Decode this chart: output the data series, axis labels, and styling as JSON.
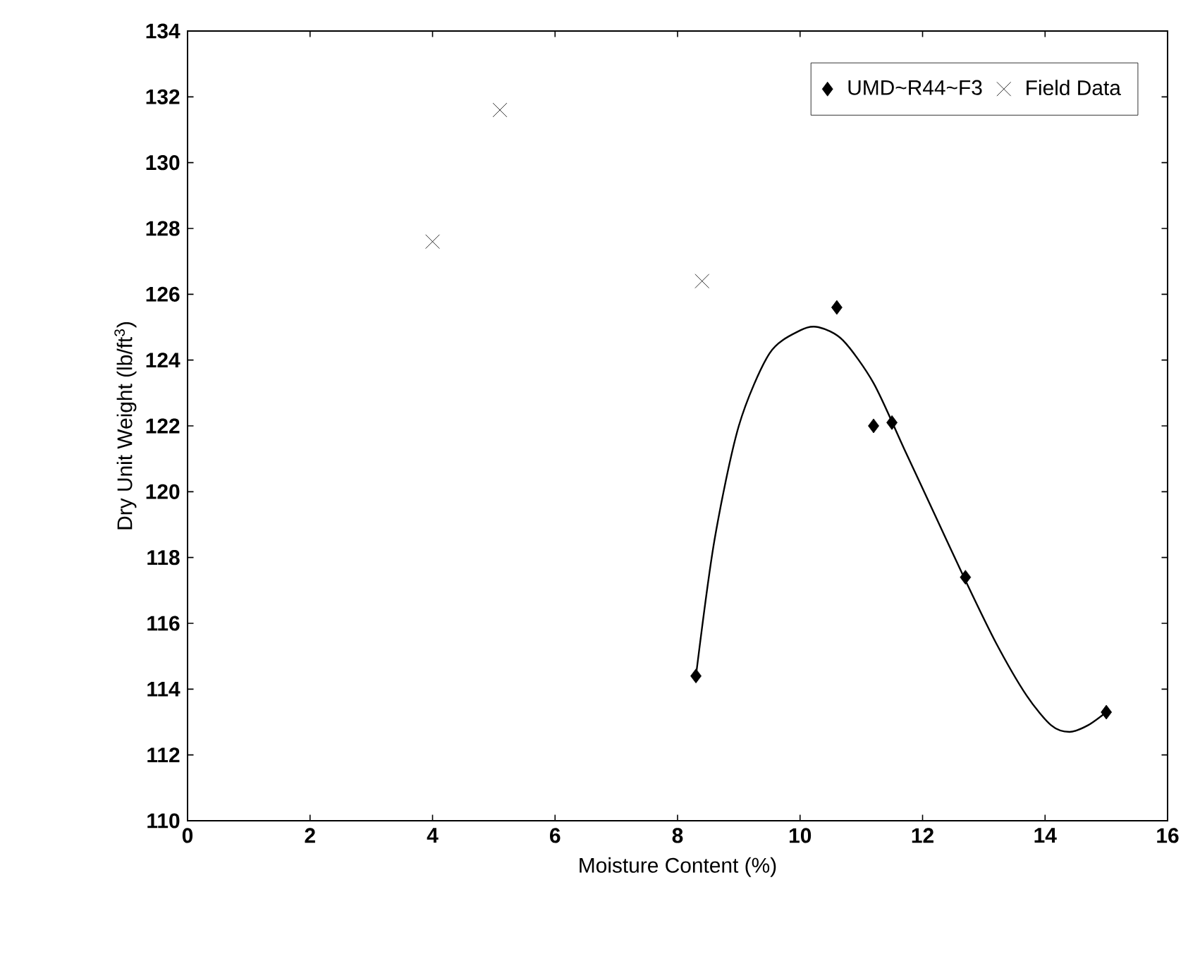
{
  "chart_data": {
    "type": "scatter",
    "xlabel": "Moisture Content (%)",
    "ylabel": "Dry Unit Weight (lb/ft$^{3}$)",
    "xlim": [
      0,
      16
    ],
    "xticks": [
      0,
      2,
      4,
      6,
      8,
      10,
      12,
      14,
      16
    ],
    "ylim": [
      110,
      134
    ],
    "yticks": [
      110,
      112,
      114,
      116,
      118,
      120,
      122,
      124,
      126,
      128,
      130,
      132,
      134
    ],
    "grid": false,
    "legend": "top right",
    "series": [
      {
        "name": "UMD~R44~F3",
        "color": "#000000",
        "marker": "diamond",
        "x": [
          8.3,
          10.6,
          11.2,
          11.5,
          12.7,
          15.0
        ],
        "values": [
          114.4,
          125.6,
          122.0,
          122.1,
          117.4,
          113.3
        ]
      },
      {
        "name": "Field Data",
        "color": "#000000",
        "marker": "cross",
        "x": [
          4.0,
          5.1,
          8.4
        ],
        "values": [
          127.6,
          131.6,
          126.4
        ]
      },
      {
        "type": "line",
        "color": "#000000",
        "marker": "none",
        "x": [
          8.3,
          8.6,
          9.0,
          9.5,
          10.0,
          10.3,
          10.7,
          11.2,
          11.7,
          12.2,
          12.7,
          13.2,
          13.7,
          14.1,
          14.4,
          14.7,
          15.0
        ],
        "values": [
          114.4,
          118.5,
          122.0,
          124.2,
          124.9,
          125.0,
          124.6,
          123.3,
          121.3,
          119.3,
          117.3,
          115.4,
          113.8,
          112.9,
          112.7,
          112.9,
          113.3
        ]
      }
    ]
  }
}
